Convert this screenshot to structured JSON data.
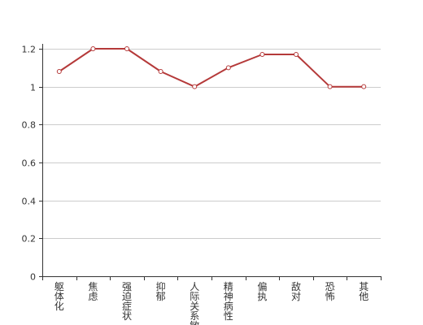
{
  "chart_data": {
    "type": "line",
    "title": "",
    "xlabel": "",
    "ylabel": "",
    "categories": [
      "躯体化",
      "焦虑",
      "强迫症状",
      "抑郁",
      "人际关系敏感",
      "精神病性",
      "偏执",
      "敌对",
      "恐怖",
      "其他"
    ],
    "series": [
      {
        "values": [
          1.08,
          1.2,
          1.2,
          1.08,
          1.0,
          1.1,
          1.17,
          1.17,
          1.0,
          1.0
        ]
      }
    ],
    "ylim": [
      0,
      1.2
    ],
    "yticks": [
      0,
      0.2,
      0.4,
      0.6,
      0.8,
      1,
      1.2
    ],
    "ytick_labels": [
      "0",
      "0.2",
      "0.4",
      "0.6",
      "0.8",
      "1",
      "1.2"
    ],
    "grid": true,
    "legend": "none",
    "colors": {
      "line": "#b53a3a",
      "point_fill": "#ffffff",
      "grid": "#cccccc",
      "axis": "#333333",
      "text": "#333333"
    }
  }
}
